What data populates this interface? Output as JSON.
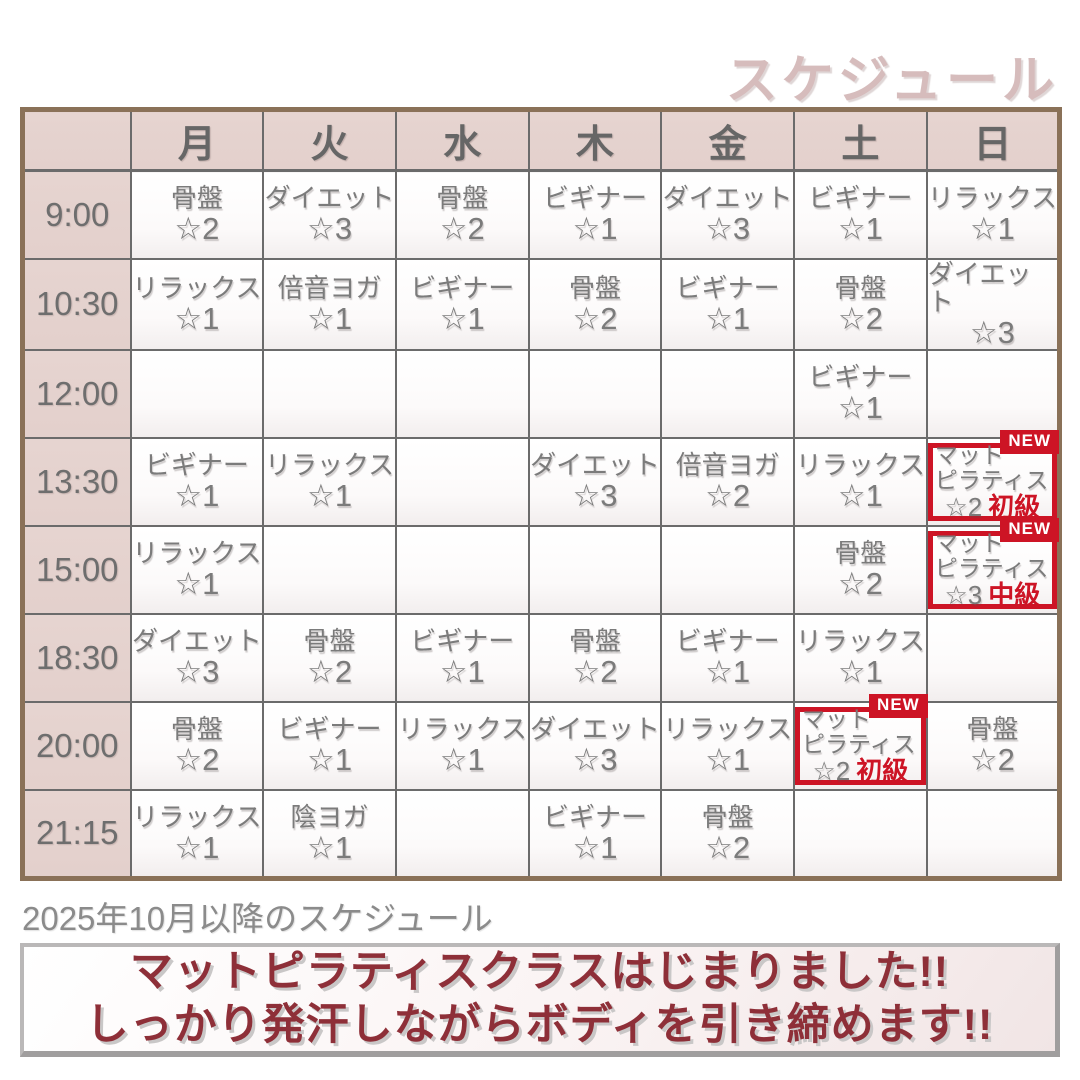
{
  "title": "スケジュール",
  "caption": "2025年10月以降のスケジュール",
  "badge_label": "NEW",
  "banner": {
    "line1": "マットピラティスクラスはじまりました!!",
    "line2": "しっかり発汗しながらボディを引き締めます!!"
  },
  "colors": {
    "title_pink": "#d6bcbc",
    "header_bg": "#e3d0cc",
    "table_border": "#8a7158",
    "grid_line": "#6b6b6b",
    "cell_text": "#7b7b7b",
    "accent_red": "#cd1425",
    "banner_text": "#8e2f38"
  },
  "table": {
    "days": [
      "月",
      "火",
      "水",
      "木",
      "金",
      "土",
      "日"
    ],
    "rows": [
      {
        "time": "9:00",
        "cells": [
          {
            "lines": [
              "骨盤"
            ],
            "stars": "☆2"
          },
          {
            "lines": [
              "ダイエット"
            ],
            "stars": "☆3"
          },
          {
            "lines": [
              "骨盤"
            ],
            "stars": "☆2"
          },
          {
            "lines": [
              "ビギナー"
            ],
            "stars": "☆1"
          },
          {
            "lines": [
              "ダイエット"
            ],
            "stars": "☆3"
          },
          {
            "lines": [
              "ビギナー"
            ],
            "stars": "☆1"
          },
          {
            "lines": [
              "リラックス"
            ],
            "stars": "☆1"
          }
        ]
      },
      {
        "time": "10:30",
        "cells": [
          {
            "lines": [
              "リラックス"
            ],
            "stars": "☆1"
          },
          {
            "lines": [
              "倍音ヨガ"
            ],
            "stars": "☆1"
          },
          {
            "lines": [
              "ビギナー"
            ],
            "stars": "☆1"
          },
          {
            "lines": [
              "骨盤"
            ],
            "stars": "☆2"
          },
          {
            "lines": [
              "ビギナー"
            ],
            "stars": "☆1"
          },
          {
            "lines": [
              "骨盤"
            ],
            "stars": "☆2"
          },
          {
            "lines": [
              "ダイエット"
            ],
            "stars": "☆3"
          }
        ]
      },
      {
        "time": "12:00",
        "cells": [
          null,
          null,
          null,
          null,
          null,
          {
            "lines": [
              "ビギナー"
            ],
            "stars": "☆1"
          },
          null
        ]
      },
      {
        "time": "13:30",
        "cells": [
          {
            "lines": [
              "ビギナー"
            ],
            "stars": "☆1"
          },
          {
            "lines": [
              "リラックス"
            ],
            "stars": "☆1"
          },
          null,
          {
            "lines": [
              "ダイエット"
            ],
            "stars": "☆3"
          },
          {
            "lines": [
              "倍音ヨガ"
            ],
            "stars": "☆2"
          },
          {
            "lines": [
              "リラックス"
            ],
            "stars": "☆1"
          },
          {
            "lines": [
              "マット",
              "ピラティス"
            ],
            "stars": "☆2",
            "level": "初級",
            "new": true
          }
        ]
      },
      {
        "time": "15:00",
        "cells": [
          {
            "lines": [
              "リラックス"
            ],
            "stars": "☆1"
          },
          null,
          null,
          null,
          null,
          {
            "lines": [
              "骨盤"
            ],
            "stars": "☆2"
          },
          {
            "lines": [
              "マット",
              "ピラティス"
            ],
            "stars": "☆3",
            "level": "中級",
            "new": true
          }
        ]
      },
      {
        "time": "18:30",
        "cells": [
          {
            "lines": [
              "ダイエット"
            ],
            "stars": "☆3"
          },
          {
            "lines": [
              "骨盤"
            ],
            "stars": "☆2"
          },
          {
            "lines": [
              "ビギナー"
            ],
            "stars": "☆1"
          },
          {
            "lines": [
              "骨盤"
            ],
            "stars": "☆2"
          },
          {
            "lines": [
              "ビギナー"
            ],
            "stars": "☆1"
          },
          {
            "lines": [
              "リラックス"
            ],
            "stars": "☆1"
          },
          null
        ]
      },
      {
        "time": "20:00",
        "cells": [
          {
            "lines": [
              "骨盤"
            ],
            "stars": "☆2"
          },
          {
            "lines": [
              "ビギナー"
            ],
            "stars": "☆1"
          },
          {
            "lines": [
              "リラックス"
            ],
            "stars": "☆1"
          },
          {
            "lines": [
              "ダイエット"
            ],
            "stars": "☆3"
          },
          {
            "lines": [
              "リラックス"
            ],
            "stars": "☆1"
          },
          {
            "lines": [
              "マット",
              "ピラティス"
            ],
            "stars": "☆2",
            "level": "初級",
            "new": true
          },
          {
            "lines": [
              "骨盤"
            ],
            "stars": "☆2"
          }
        ]
      },
      {
        "time": "21:15",
        "cells": [
          {
            "lines": [
              "リラックス"
            ],
            "stars": "☆1"
          },
          {
            "lines": [
              "陰ヨガ"
            ],
            "stars": "☆1"
          },
          null,
          {
            "lines": [
              "ビギナー"
            ],
            "stars": "☆1"
          },
          {
            "lines": [
              "骨盤"
            ],
            "stars": "☆2"
          },
          null,
          null
        ]
      }
    ]
  }
}
